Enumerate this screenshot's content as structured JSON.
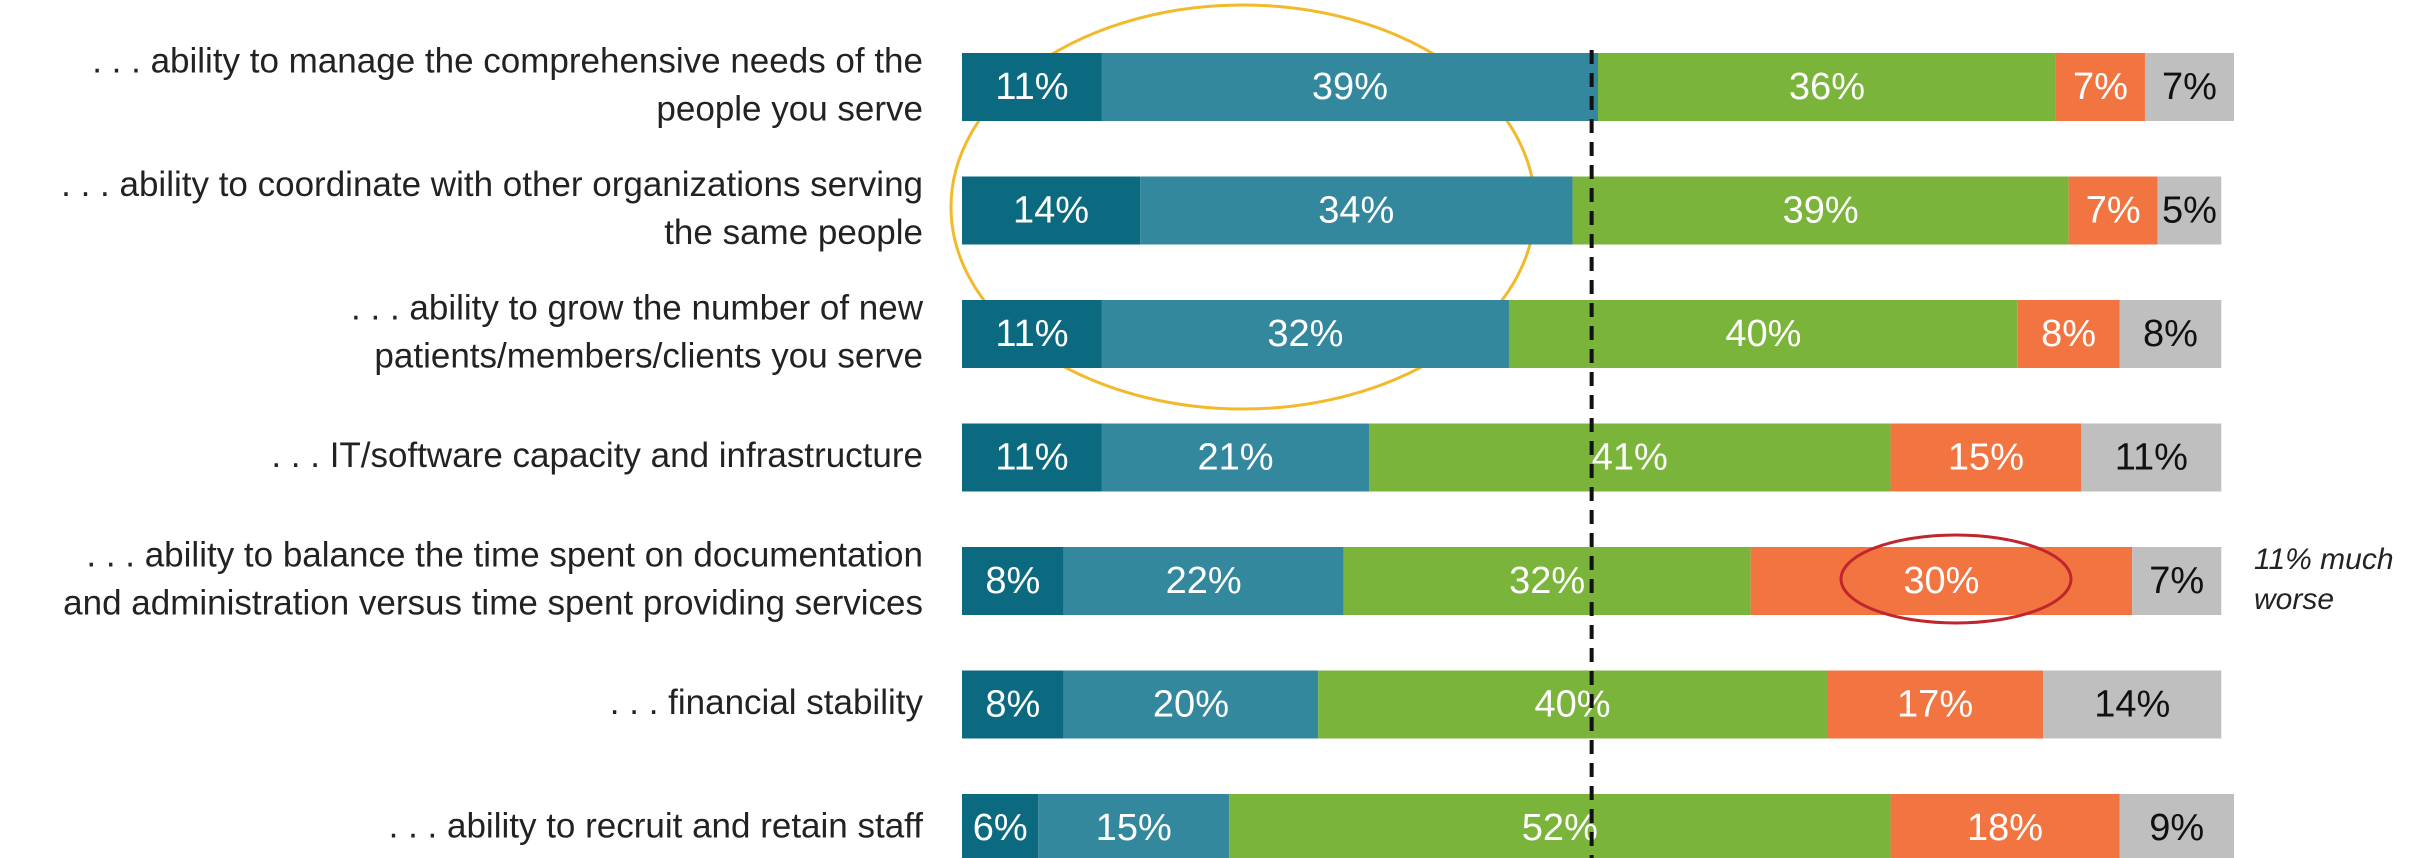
{
  "chart_data": {
    "type": "stacked-barh",
    "categories": [
      [
        ". . . ability to manage the comprehensive needs of the",
        "people you serve"
      ],
      [
        ". . . ability to coordinate with other organizations serving",
        "the same people"
      ],
      [
        ". . . ability to grow the number of new",
        "patients/members/clients you serve"
      ],
      [
        ". . . IT/software capacity and infrastructure"
      ],
      [
        ". . . ability to balance the time spent on documentation",
        "and administration versus time spent providing services"
      ],
      [
        ". . . financial stability"
      ],
      [
        ". . . ability to recruit and retain staff"
      ]
    ],
    "series": [
      {
        "color": "#0c6a80",
        "label_color": "#ffffff",
        "values": [
          11,
          14,
          11,
          11,
          8,
          8,
          6
        ],
        "value_labels": [
          "11%",
          "14%",
          "11%",
          "11%",
          "8%",
          "8%",
          "6%"
        ]
      },
      {
        "color": "#33889e",
        "label_color": "#ffffff",
        "values": [
          39,
          34,
          32,
          21,
          22,
          20,
          15
        ],
        "value_labels": [
          "39%",
          "34%",
          "32%",
          "21%",
          "22%",
          "20%",
          "15%"
        ]
      },
      {
        "color": "#7ab43a",
        "label_color": "#ffffff",
        "values": [
          36,
          39,
          40,
          41,
          32,
          40,
          52
        ],
        "value_labels": [
          "36%",
          "39%",
          "40%",
          "41%",
          "32%",
          "40%",
          "52%"
        ]
      },
      {
        "color": "#f27441",
        "label_color": "#ffffff",
        "values": [
          7,
          7,
          8,
          15,
          30,
          17,
          18
        ],
        "value_labels": [
          "7%",
          "7%",
          "8%",
          "15%",
          "30%",
          "17%",
          "18%"
        ]
      },
      {
        "color": "#bfbfbf",
        "label_color": "#111111",
        "values": [
          7,
          5,
          8,
          11,
          7,
          14,
          9
        ],
        "value_labels": [
          "7%",
          "5%",
          "8%",
          "11%",
          "7%",
          "14%",
          "9%"
        ]
      }
    ],
    "xlim": [
      0,
      100
    ],
    "reference_x": 49.5,
    "annotation": {
      "row": 4,
      "lines": [
        "11% much",
        "worse"
      ]
    }
  }
}
